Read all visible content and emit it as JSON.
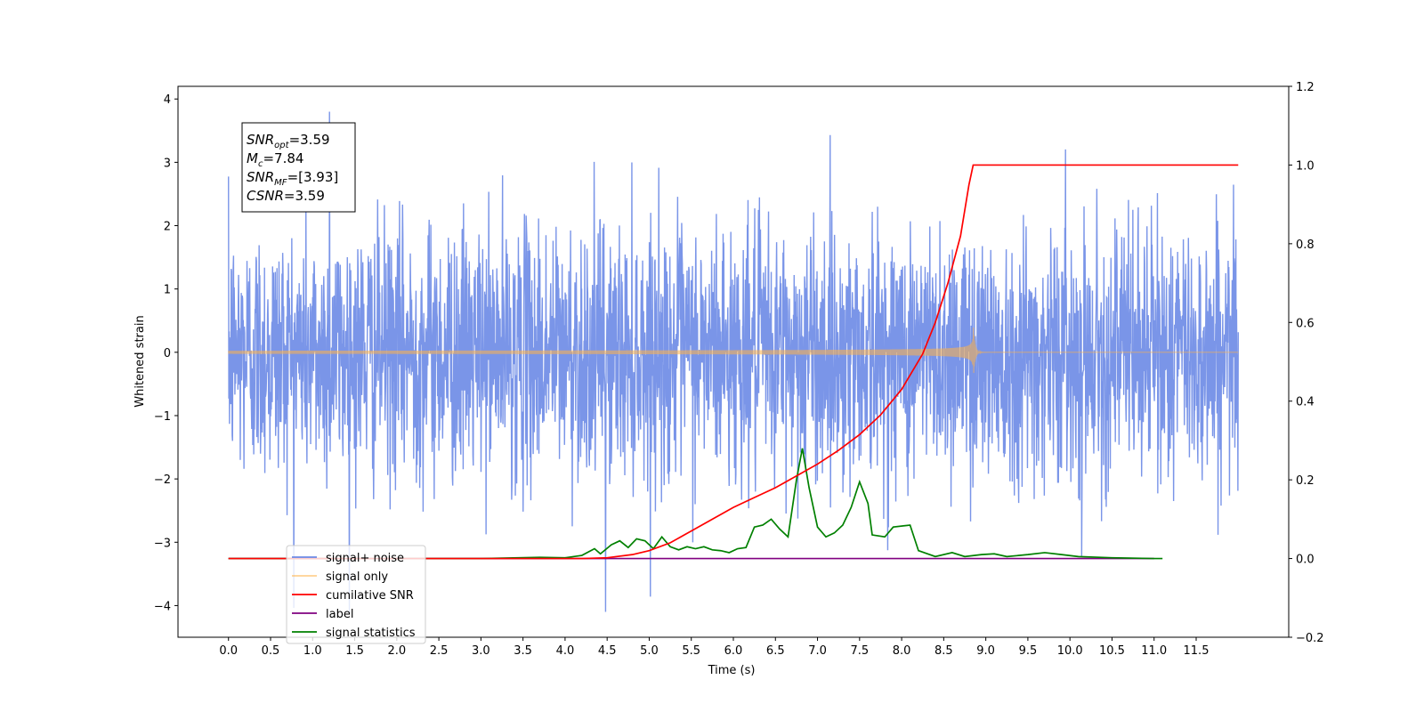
{
  "chart_data": {
    "type": "line",
    "xlabel": "Time (s)",
    "ylabel": "Whitened strain",
    "x_ticks": [
      "0.0",
      "0.5",
      "1.0",
      "1.5",
      "2.0",
      "2.5",
      "3.0",
      "3.5",
      "4.0",
      "4.5",
      "5.0",
      "5.5",
      "6.0",
      "6.5",
      "7.0",
      "7.5",
      "8.0",
      "8.5",
      "9.0",
      "9.5",
      "10.0",
      "10.5",
      "11.0",
      "11.5"
    ],
    "xlim": [
      -0.6,
      12.6
    ],
    "ylim_left": [
      -4.5,
      4.2
    ],
    "y_ticks_left": [
      "4",
      "3",
      "2",
      "1",
      "0",
      "−1",
      "−2",
      "−3",
      "−4"
    ],
    "ylim_right": [
      -0.2,
      1.2
    ],
    "y_ticks_right": [
      "1.2",
      "1.0",
      "0.8",
      "0.6",
      "0.4",
      "0.2",
      "0.0",
      "−0.2"
    ],
    "grid": false,
    "legend_position": "lower-left",
    "stats_box": {
      "lines": [
        {
          "main": "SNR",
          "sub": "opt",
          "value": "=3.59"
        },
        {
          "main": "M",
          "sub": "c",
          "value": "=7.84"
        },
        {
          "main": "SNR",
          "sub": "MF",
          "value": "=[3.93]"
        },
        {
          "main": "CSNR",
          "sub": "",
          "value": "=3.59"
        }
      ]
    },
    "series": [
      {
        "name": "signal+ noise",
        "color": "#6b89e6",
        "axis": "left",
        "x_range": [
          0.0,
          12.0
        ],
        "noise_sigma": 1.0,
        "extremes": {
          "max": 3.8,
          "min": -4.1
        }
      },
      {
        "name": "signal only",
        "color": "#ffb347",
        "axis": "left",
        "x_range": [
          0.0,
          12.0
        ],
        "merger_time": 8.85,
        "peak_amplitude": 0.45
      },
      {
        "name": "cumilative SNR",
        "color": "#ff0000",
        "axis": "right",
        "points": [
          [
            0.0,
            0.0
          ],
          [
            4.2,
            0.0
          ],
          [
            4.5,
            0.002
          ],
          [
            4.8,
            0.01
          ],
          [
            5.0,
            0.02
          ],
          [
            5.25,
            0.04
          ],
          [
            5.5,
            0.07
          ],
          [
            5.75,
            0.1
          ],
          [
            6.0,
            0.13
          ],
          [
            6.25,
            0.155
          ],
          [
            6.5,
            0.18
          ],
          [
            6.75,
            0.21
          ],
          [
            7.0,
            0.24
          ],
          [
            7.25,
            0.275
          ],
          [
            7.5,
            0.315
          ],
          [
            7.75,
            0.365
          ],
          [
            8.0,
            0.43
          ],
          [
            8.25,
            0.52
          ],
          [
            8.4,
            0.6
          ],
          [
            8.55,
            0.7
          ],
          [
            8.7,
            0.82
          ],
          [
            8.8,
            0.95
          ],
          [
            8.85,
            1.0
          ],
          [
            12.0,
            1.0
          ]
        ]
      },
      {
        "name": "label",
        "color": "#800080",
        "axis": "right",
        "points": [
          [
            0.0,
            0.0
          ],
          [
            11.0,
            0.0
          ]
        ]
      },
      {
        "name": "signal statistics",
        "color": "#008000",
        "axis": "right",
        "points": [
          [
            0.0,
            0.0
          ],
          [
            3.0,
            0.0
          ],
          [
            3.7,
            0.003
          ],
          [
            4.0,
            0.002
          ],
          [
            4.2,
            0.008
          ],
          [
            4.35,
            0.025
          ],
          [
            4.42,
            0.012
          ],
          [
            4.55,
            0.035
          ],
          [
            4.65,
            0.045
          ],
          [
            4.75,
            0.028
          ],
          [
            4.85,
            0.05
          ],
          [
            4.95,
            0.045
          ],
          [
            5.05,
            0.025
          ],
          [
            5.15,
            0.055
          ],
          [
            5.25,
            0.03
          ],
          [
            5.35,
            0.022
          ],
          [
            5.45,
            0.03
          ],
          [
            5.55,
            0.025
          ],
          [
            5.65,
            0.03
          ],
          [
            5.75,
            0.022
          ],
          [
            5.85,
            0.02
          ],
          [
            5.95,
            0.015
          ],
          [
            6.05,
            0.025
          ],
          [
            6.15,
            0.028
          ],
          [
            6.25,
            0.08
          ],
          [
            6.35,
            0.085
          ],
          [
            6.45,
            0.1
          ],
          [
            6.55,
            0.075
          ],
          [
            6.65,
            0.055
          ],
          [
            6.75,
            0.2
          ],
          [
            6.82,
            0.28
          ],
          [
            6.9,
            0.18
          ],
          [
            7.0,
            0.08
          ],
          [
            7.1,
            0.055
          ],
          [
            7.2,
            0.065
          ],
          [
            7.3,
            0.085
          ],
          [
            7.4,
            0.13
          ],
          [
            7.5,
            0.195
          ],
          [
            7.6,
            0.14
          ],
          [
            7.65,
            0.06
          ],
          [
            7.8,
            0.055
          ],
          [
            7.9,
            0.08
          ],
          [
            8.1,
            0.085
          ],
          [
            8.2,
            0.02
          ],
          [
            8.4,
            0.005
          ],
          [
            8.6,
            0.015
          ],
          [
            8.75,
            0.005
          ],
          [
            8.95,
            0.01
          ],
          [
            9.1,
            0.012
          ],
          [
            9.25,
            0.005
          ],
          [
            9.5,
            0.01
          ],
          [
            9.7,
            0.015
          ],
          [
            9.9,
            0.01
          ],
          [
            10.1,
            0.005
          ],
          [
            10.5,
            0.002
          ],
          [
            11.0,
            0.0
          ],
          [
            11.1,
            0.0
          ]
        ]
      }
    ]
  }
}
